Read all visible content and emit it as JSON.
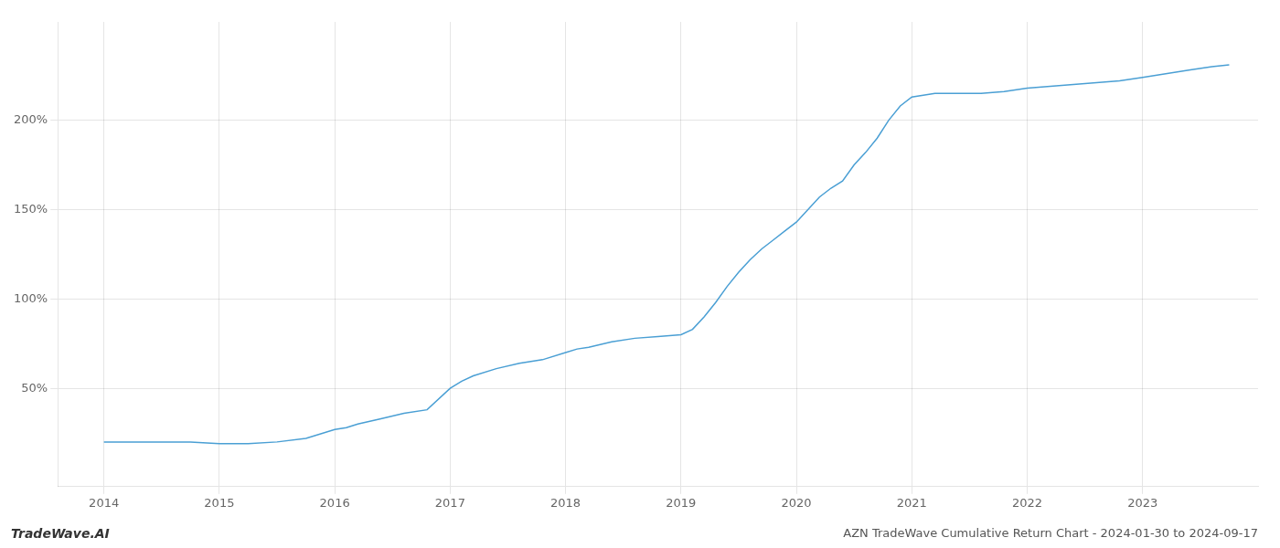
{
  "chart_data": {
    "type": "line",
    "title": "AZN TradeWave Cumulative Return Chart - 2024-01-30 to 2024-09-17",
    "annotations": [
      "TradeWave.AI"
    ],
    "color": "#4a9fd4",
    "grid": true,
    "x": [
      2014.0,
      2014.25,
      2014.5,
      2014.75,
      2015.0,
      2015.25,
      2015.5,
      2015.75,
      2016.0,
      2016.1,
      2016.2,
      2016.4,
      2016.6,
      2016.8,
      2017.0,
      2017.1,
      2017.2,
      2017.4,
      2017.6,
      2017.8,
      2018.0,
      2018.1,
      2018.2,
      2018.4,
      2018.6,
      2018.8,
      2019.0,
      2019.1,
      2019.2,
      2019.3,
      2019.4,
      2019.5,
      2019.6,
      2019.7,
      2019.8,
      2019.9,
      2020.0,
      2020.1,
      2020.2,
      2020.3,
      2020.4,
      2020.5,
      2020.6,
      2020.7,
      2020.8,
      2020.9,
      2021.0,
      2021.1,
      2021.2,
      2021.4,
      2021.6,
      2021.8,
      2022.0,
      2022.2,
      2022.4,
      2022.6,
      2022.8,
      2023.0,
      2023.2,
      2023.4,
      2023.6,
      2023.75
    ],
    "values": [
      20,
      20,
      20,
      20,
      19,
      19,
      20,
      22,
      27,
      28,
      30,
      33,
      36,
      38,
      50,
      54,
      57,
      61,
      64,
      66,
      70,
      72,
      73,
      76,
      78,
      79,
      80,
      83,
      90,
      98,
      107,
      115,
      122,
      128,
      133,
      138,
      143,
      150,
      157,
      162,
      166,
      175,
      182,
      190,
      200,
      208,
      213,
      214,
      215,
      215,
      215,
      216,
      218,
      219,
      220,
      221,
      222,
      224,
      226,
      228,
      230,
      231
    ],
    "xlim": [
      2013.6,
      2024.0
    ],
    "xticks": [
      2014,
      2015,
      2016,
      2017,
      2018,
      2019,
      2020,
      2021,
      2022,
      2023
    ],
    "ylim": [
      -5,
      255
    ],
    "yticks": [
      {
        "value": 50,
        "label": "50%"
      },
      {
        "value": 100,
        "label": "100%"
      },
      {
        "value": 150,
        "label": "150%"
      },
      {
        "value": 200,
        "label": "200%"
      }
    ]
  }
}
